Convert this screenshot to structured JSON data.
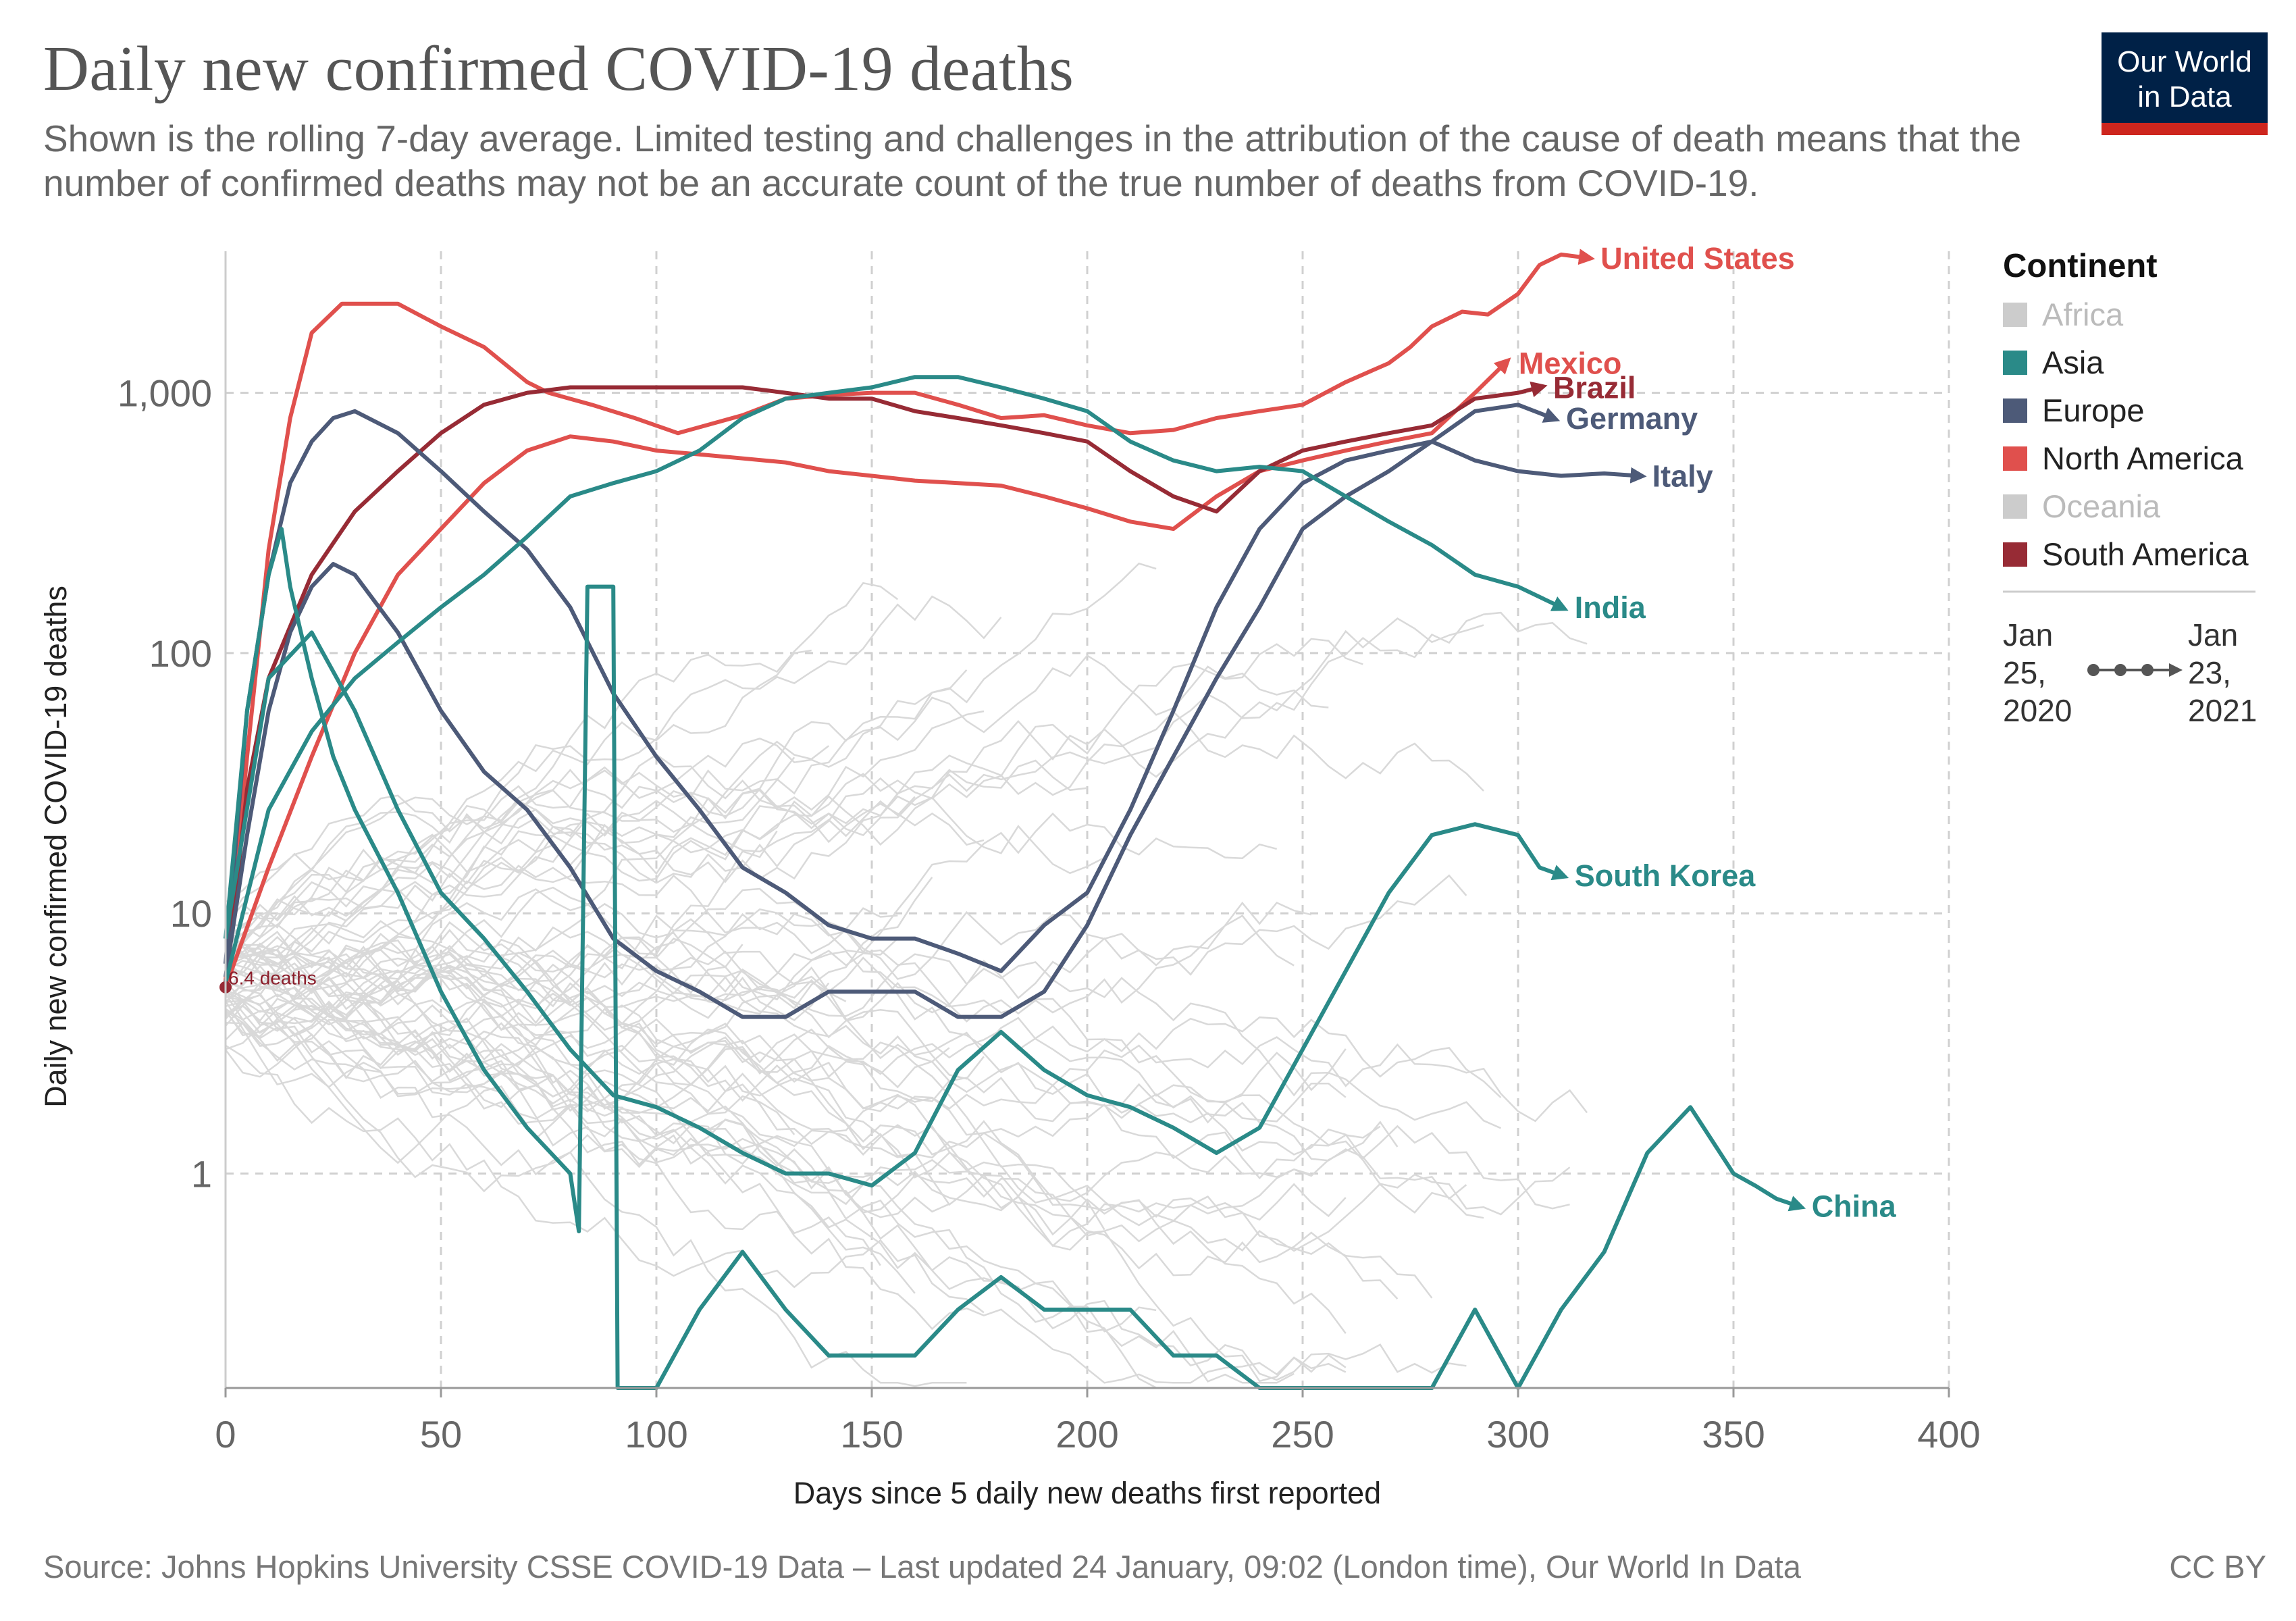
{
  "header": {
    "title": "Daily new confirmed COVID-19 deaths",
    "subtitle": "Shown is the rolling 7-day average. Limited testing and challenges in the attribution of the cause of death means that the number of confirmed deaths may not be an accurate count of the true number of deaths from COVID-19.",
    "logo_line1": "Our World",
    "logo_line2": "in Data"
  },
  "footer": {
    "source": "Source: Johns Hopkins University CSSE COVID-19 Data – Last updated 24 January, 09:02 (London time), Our World In Data",
    "license": "CC BY"
  },
  "chart_data": {
    "type": "line",
    "xlabel": "Days since 5 daily new deaths first reported",
    "ylabel": "Daily new confirmed COVID-19 deaths",
    "xlim": [
      0,
      400
    ],
    "ylim": [
      0.15,
      3500
    ],
    "yscale": "log",
    "grid": true,
    "xticks": [
      0,
      50,
      100,
      150,
      200,
      250,
      300,
      350,
      400
    ],
    "yticks": [
      {
        "value": 1,
        "label": "1"
      },
      {
        "value": 10,
        "label": "10"
      },
      {
        "value": 100,
        "label": "100"
      },
      {
        "value": 1000,
        "label": "1,000"
      }
    ],
    "annotation": {
      "text": "6.4 deaths",
      "x": 0,
      "y": 5.2
    },
    "legend": {
      "title": "Continent",
      "placement": "right",
      "items": [
        {
          "name": "Africa",
          "color": "#cccccc",
          "muted": true
        },
        {
          "name": "Asia",
          "color": "#2a8a88",
          "muted": false
        },
        {
          "name": "Europe",
          "color": "#4d5a78",
          "muted": false
        },
        {
          "name": "North America",
          "color": "#e0504d",
          "muted": false
        },
        {
          "name": "Oceania",
          "color": "#cccccc",
          "muted": true
        },
        {
          "name": "South America",
          "color": "#972b35",
          "muted": false
        }
      ]
    },
    "timeline": {
      "start_line1": "Jan",
      "start_line2": "25,",
      "start_line3": "2020",
      "end_line1": "Jan",
      "end_line2": "23,",
      "end_line3": "2021"
    },
    "series": [
      {
        "name": "United States",
        "color": "#e0504d",
        "points": [
          [
            0,
            5.5
          ],
          [
            5,
            40
          ],
          [
            10,
            250
          ],
          [
            15,
            800
          ],
          [
            20,
            1700
          ],
          [
            27,
            2200
          ],
          [
            40,
            2200
          ],
          [
            50,
            1800
          ],
          [
            60,
            1500
          ],
          [
            70,
            1100
          ],
          [
            75,
            1000
          ],
          [
            85,
            900
          ],
          [
            95,
            800
          ],
          [
            105,
            700
          ],
          [
            120,
            820
          ],
          [
            130,
            950
          ],
          [
            140,
            980
          ],
          [
            150,
            1000
          ],
          [
            160,
            1000
          ],
          [
            170,
            900
          ],
          [
            180,
            800
          ],
          [
            190,
            820
          ],
          [
            200,
            750
          ],
          [
            210,
            700
          ],
          [
            220,
            720
          ],
          [
            230,
            800
          ],
          [
            240,
            850
          ],
          [
            250,
            900
          ],
          [
            260,
            1100
          ],
          [
            270,
            1300
          ],
          [
            275,
            1500
          ],
          [
            280,
            1800
          ],
          [
            287,
            2050
          ],
          [
            293,
            2000
          ],
          [
            300,
            2400
          ],
          [
            305,
            3100
          ],
          [
            310,
            3400
          ],
          [
            316,
            3300
          ]
        ]
      },
      {
        "name": "Mexico",
        "color": "#e0504d",
        "points": [
          [
            0,
            5.2
          ],
          [
            10,
            15
          ],
          [
            20,
            40
          ],
          [
            30,
            100
          ],
          [
            40,
            200
          ],
          [
            50,
            300
          ],
          [
            60,
            450
          ],
          [
            70,
            600
          ],
          [
            80,
            680
          ],
          [
            90,
            650
          ],
          [
            100,
            600
          ],
          [
            110,
            580
          ],
          [
            120,
            560
          ],
          [
            130,
            540
          ],
          [
            140,
            500
          ],
          [
            150,
            480
          ],
          [
            160,
            460
          ],
          [
            170,
            450
          ],
          [
            180,
            440
          ],
          [
            190,
            400
          ],
          [
            200,
            360
          ],
          [
            210,
            320
          ],
          [
            220,
            300
          ],
          [
            230,
            400
          ],
          [
            240,
            500
          ],
          [
            250,
            550
          ],
          [
            260,
            600
          ],
          [
            270,
            650
          ],
          [
            280,
            700
          ],
          [
            290,
            1000
          ],
          [
            297,
            1300
          ]
        ]
      },
      {
        "name": "Brazil",
        "color": "#972b35",
        "points": [
          [
            0,
            5.2
          ],
          [
            5,
            30
          ],
          [
            10,
            80
          ],
          [
            20,
            200
          ],
          [
            30,
            350
          ],
          [
            40,
            500
          ],
          [
            50,
            700
          ],
          [
            60,
            900
          ],
          [
            70,
            1000
          ],
          [
            80,
            1050
          ],
          [
            90,
            1050
          ],
          [
            100,
            1050
          ],
          [
            110,
            1050
          ],
          [
            120,
            1050
          ],
          [
            130,
            1000
          ],
          [
            140,
            950
          ],
          [
            150,
            950
          ],
          [
            160,
            850
          ],
          [
            170,
            800
          ],
          [
            180,
            750
          ],
          [
            190,
            700
          ],
          [
            200,
            650
          ],
          [
            210,
            500
          ],
          [
            220,
            400
          ],
          [
            230,
            350
          ],
          [
            240,
            500
          ],
          [
            250,
            600
          ],
          [
            260,
            650
          ],
          [
            270,
            700
          ],
          [
            280,
            750
          ],
          [
            290,
            950
          ],
          [
            300,
            1000
          ],
          [
            305,
            1050
          ]
        ]
      },
      {
        "name": "Germany",
        "color": "#4d5a78",
        "points": [
          [
            0,
            5.7
          ],
          [
            5,
            20
          ],
          [
            10,
            60
          ],
          [
            15,
            120
          ],
          [
            20,
            180
          ],
          [
            25,
            220
          ],
          [
            30,
            200
          ],
          [
            40,
            120
          ],
          [
            50,
            60
          ],
          [
            60,
            35
          ],
          [
            70,
            25
          ],
          [
            80,
            15
          ],
          [
            90,
            8
          ],
          [
            100,
            6
          ],
          [
            110,
            5
          ],
          [
            120,
            4
          ],
          [
            130,
            4
          ],
          [
            140,
            5
          ],
          [
            150,
            5
          ],
          [
            160,
            5
          ],
          [
            170,
            4
          ],
          [
            180,
            4
          ],
          [
            190,
            5
          ],
          [
            200,
            9
          ],
          [
            210,
            20
          ],
          [
            220,
            40
          ],
          [
            230,
            80
          ],
          [
            240,
            150
          ],
          [
            250,
            300
          ],
          [
            260,
            400
          ],
          [
            270,
            500
          ],
          [
            280,
            650
          ],
          [
            290,
            850
          ],
          [
            300,
            900
          ],
          [
            308,
            800
          ]
        ]
      },
      {
        "name": "Italy",
        "color": "#4d5a78",
        "points": [
          [
            0,
            6.4
          ],
          [
            5,
            60
          ],
          [
            10,
            200
          ],
          [
            15,
            450
          ],
          [
            20,
            650
          ],
          [
            25,
            800
          ],
          [
            30,
            850
          ],
          [
            40,
            700
          ],
          [
            50,
            500
          ],
          [
            60,
            350
          ],
          [
            70,
            250
          ],
          [
            80,
            150
          ],
          [
            90,
            70
          ],
          [
            100,
            40
          ],
          [
            110,
            25
          ],
          [
            120,
            15
          ],
          [
            130,
            12
          ],
          [
            140,
            9
          ],
          [
            150,
            8
          ],
          [
            160,
            8
          ],
          [
            170,
            7
          ],
          [
            180,
            6
          ],
          [
            190,
            9
          ],
          [
            200,
            12
          ],
          [
            210,
            25
          ],
          [
            220,
            60
          ],
          [
            230,
            150
          ],
          [
            240,
            300
          ],
          [
            250,
            450
          ],
          [
            260,
            550
          ],
          [
            270,
            600
          ],
          [
            280,
            650
          ],
          [
            290,
            550
          ],
          [
            300,
            500
          ],
          [
            310,
            480
          ],
          [
            320,
            490
          ],
          [
            328,
            480
          ]
        ]
      },
      {
        "name": "India",
        "color": "#2a8a88",
        "points": [
          [
            0,
            5.4
          ],
          [
            10,
            25
          ],
          [
            20,
            50
          ],
          [
            30,
            80
          ],
          [
            40,
            110
          ],
          [
            50,
            150
          ],
          [
            60,
            200
          ],
          [
            70,
            280
          ],
          [
            80,
            400
          ],
          [
            90,
            450
          ],
          [
            100,
            500
          ],
          [
            110,
            600
          ],
          [
            120,
            800
          ],
          [
            130,
            950
          ],
          [
            140,
            1000
          ],
          [
            150,
            1050
          ],
          [
            160,
            1150
          ],
          [
            170,
            1150
          ],
          [
            180,
            1050
          ],
          [
            190,
            950
          ],
          [
            200,
            850
          ],
          [
            210,
            650
          ],
          [
            220,
            550
          ],
          [
            230,
            500
          ],
          [
            240,
            520
          ],
          [
            250,
            500
          ],
          [
            260,
            400
          ],
          [
            270,
            320
          ],
          [
            280,
            260
          ],
          [
            290,
            200
          ],
          [
            300,
            180
          ],
          [
            310,
            150
          ]
        ]
      },
      {
        "name": "South Korea",
        "color": "#2a8a88",
        "points": [
          [
            0,
            8
          ],
          [
            10,
            80
          ],
          [
            20,
            120
          ],
          [
            30,
            60
          ],
          [
            40,
            25
          ],
          [
            50,
            12
          ],
          [
            60,
            8
          ],
          [
            70,
            5
          ],
          [
            80,
            3
          ],
          [
            90,
            2
          ],
          [
            100,
            1.8
          ],
          [
            110,
            1.5
          ],
          [
            120,
            1.2
          ],
          [
            130,
            1
          ],
          [
            140,
            1
          ],
          [
            150,
            0.9
          ],
          [
            160,
            1.2
          ],
          [
            170,
            2.5
          ],
          [
            180,
            3.5
          ],
          [
            190,
            2.5
          ],
          [
            200,
            2
          ],
          [
            210,
            1.8
          ],
          [
            220,
            1.5
          ],
          [
            230,
            1.2
          ],
          [
            240,
            1.5
          ],
          [
            250,
            3
          ],
          [
            260,
            6
          ],
          [
            270,
            12
          ],
          [
            280,
            20
          ],
          [
            290,
            22
          ],
          [
            300,
            20
          ],
          [
            305,
            15
          ],
          [
            310,
            14
          ]
        ]
      },
      {
        "name": "China",
        "color": "#2a8a88",
        "points": [
          [
            0,
            8
          ],
          [
            5,
            60
          ],
          [
            10,
            200
          ],
          [
            13,
            300
          ],
          [
            15,
            180
          ],
          [
            20,
            80
          ],
          [
            25,
            40
          ],
          [
            30,
            25
          ],
          [
            40,
            12
          ],
          [
            50,
            5
          ],
          [
            60,
            2.5
          ],
          [
            70,
            1.5
          ],
          [
            80,
            1
          ],
          [
            82,
            0.6
          ],
          [
            84,
            180
          ],
          [
            90,
            180
          ],
          [
            91,
            0.15
          ],
          [
            100,
            0.15
          ],
          [
            110,
            0.3
          ],
          [
            120,
            0.5
          ],
          [
            130,
            0.3
          ],
          [
            140,
            0.2
          ],
          [
            150,
            0.2
          ],
          [
            160,
            0.2
          ],
          [
            170,
            0.3
          ],
          [
            180,
            0.4
          ],
          [
            190,
            0.3
          ],
          [
            200,
            0.3
          ],
          [
            210,
            0.3
          ],
          [
            220,
            0.2
          ],
          [
            230,
            0.2
          ],
          [
            240,
            0.15
          ],
          [
            250,
            0.15
          ],
          [
            260,
            0.15
          ],
          [
            270,
            0.15
          ],
          [
            280,
            0.15
          ],
          [
            290,
            0.3
          ],
          [
            300,
            0.15
          ],
          [
            310,
            0.3
          ],
          [
            320,
            0.5
          ],
          [
            330,
            1.2
          ],
          [
            340,
            1.8
          ],
          [
            350,
            1
          ],
          [
            355,
            0.9
          ],
          [
            360,
            0.8
          ],
          [
            365,
            0.75
          ]
        ]
      }
    ],
    "background_series_count": 60
  }
}
